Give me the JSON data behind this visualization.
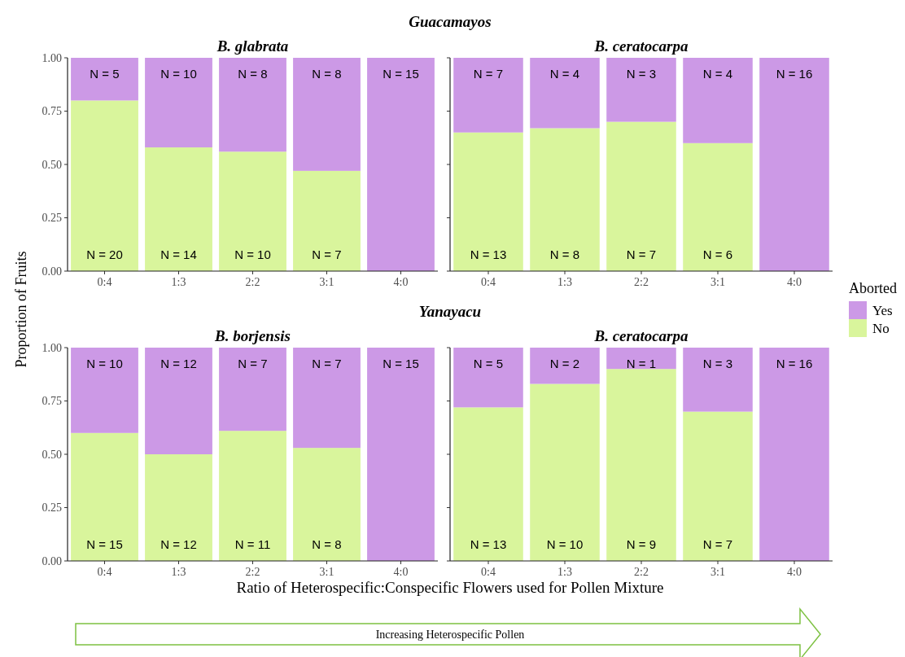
{
  "chart_data": [
    {
      "type": "bar",
      "title": "B. glabrata",
      "ylabel": "Proportion of Fruits",
      "categories": [
        "0:4",
        "1:3",
        "2:2",
        "3:1",
        "4:0"
      ],
      "stacked": true,
      "ylim": [
        0,
        1
      ],
      "yticks": [
        {
          "value": 0,
          "label": "0.00"
        },
        {
          "value": 0.25,
          "label": "0.25"
        },
        {
          "value": 0.5,
          "label": "0.50"
        },
        {
          "value": 0.75,
          "label": "0.75"
        },
        {
          "value": 1,
          "label": "1.00"
        }
      ],
      "series": [
        {
          "color": "#d9f59c",
          "values": [
            0.8,
            0.58,
            0.56,
            0.47,
            0
          ]
        },
        {
          "color": "#cc99e6",
          "values": [
            0.2,
            0.42,
            0.44,
            0.53,
            1
          ]
        }
      ],
      "annotations": [
        "N = 20",
        "N = 14",
        "N = 10",
        "N = 7",
        "N = 5",
        "N = 10",
        "N = 8",
        "N = 8",
        "N = 15",
        "Guacamayos"
      ]
    },
    {
      "type": "bar",
      "title": "B. ceratocarpa",
      "categories": [
        "0:4",
        "1:3",
        "2:2",
        "3:1",
        "4:0"
      ],
      "stacked": true,
      "tick_labels": "x",
      "legend": "right",
      "legend_title": "Aborted",
      "ylim": [
        0,
        1
      ],
      "yticks": [
        0,
        0.25,
        0.5,
        0.75,
        1
      ],
      "series": [
        {
          "name": "No",
          "color": "#d9f59c",
          "values": [
            0.65,
            0.67,
            0.7,
            0.6,
            0
          ]
        },
        {
          "name": "Yes",
          "color": "#cc99e6",
          "values": [
            0.35,
            0.33,
            0.3,
            0.4,
            1
          ]
        }
      ],
      "annotations": [
        "N = 13",
        "N = 8",
        "N = 7",
        "N = 6",
        "N = 7",
        "N = 4",
        "N = 3",
        "N = 4",
        "N = 16"
      ]
    },
    {
      "type": "bar",
      "title": "B. borjensis",
      "xlabel": "Ratio of Heterospecific:Conspecific Flowers used for Pollen Mixture",
      "categories": [
        "0:4",
        "1:3",
        "2:2",
        "3:1",
        "4:0"
      ],
      "stacked": true,
      "ylim": [
        0,
        1
      ],
      "yticks": [
        {
          "value": 0,
          "label": "0.00"
        },
        {
          "value": 0.25,
          "label": "0.25"
        },
        {
          "value": 0.5,
          "label": "0.50"
        },
        {
          "value": 0.75,
          "label": "0.75"
        },
        {
          "value": 1,
          "label": "1.00"
        }
      ],
      "series": [
        {
          "color": "#d9f59c",
          "values": [
            0.6,
            0.5,
            0.61,
            0.53,
            0
          ]
        },
        {
          "color": "#cc99e6",
          "values": [
            0.4,
            0.5,
            0.39,
            0.47,
            1
          ]
        }
      ],
      "annotations": [
        "N = 15",
        "N = 12",
        "N = 11",
        "N = 8",
        "N = 10",
        "N = 12",
        "N = 7",
        "N = 7",
        "N = 15",
        "Yanayacu",
        "Increasing Heterospecific Pollen"
      ]
    },
    {
      "type": "bar",
      "title": "B. ceratocarpa",
      "categories": [
        "0:4",
        "1:3",
        "2:2",
        "3:1",
        "4:0"
      ],
      "stacked": true,
      "tick_labels": "x",
      "ylim": [
        0,
        1
      ],
      "yticks": [
        0,
        0.25,
        0.5,
        0.75,
        1
      ],
      "series": [
        {
          "color": "#d9f59c",
          "values": [
            0.72,
            0.83,
            0.9,
            0.7,
            0
          ]
        },
        {
          "color": "#cc99e6",
          "values": [
            0.28,
            0.17,
            0.1,
            0.3,
            1
          ]
        }
      ],
      "annotations": [
        "N = 13",
        "N = 10",
        "N = 9",
        "N = 7",
        "N = 5",
        "N = 2",
        "N = 1",
        "N = 3",
        "N = 16"
      ]
    }
  ]
}
